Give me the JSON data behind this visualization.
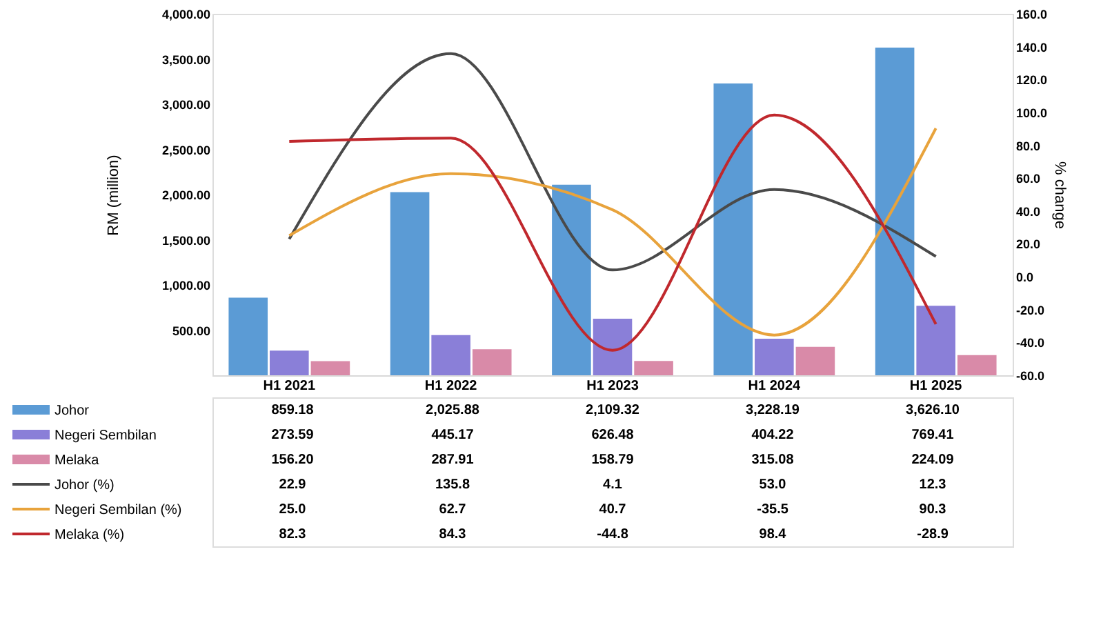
{
  "chart_data": {
    "type": "bar",
    "ylabel": "RM (million)",
    "y2label": "% change",
    "categories": [
      "H1 2021",
      "H1 2022",
      "H1 2023",
      "H1 2024",
      "H1 2025"
    ],
    "series": [
      {
        "name": "Johor",
        "color": "#5b9bd5",
        "values": [
          859.18,
          2025.88,
          2109.32,
          3228.19,
          3626.1
        ],
        "value_labels": [
          "859.18",
          "2,025.88",
          "2,109.32",
          "3,228.19",
          "3,626.10"
        ]
      },
      {
        "name": "Negeri Sembilan",
        "color": "#8a7fd8",
        "values": [
          273.59,
          445.17,
          626.48,
          404.22,
          769.41
        ],
        "value_labels": [
          "273.59",
          "445.17",
          "626.48",
          "404.22",
          "769.41"
        ]
      },
      {
        "name": "Melaka",
        "color": "#d98aa8",
        "values": [
          156.2,
          287.91,
          158.79,
          315.08,
          224.09
        ],
        "value_labels": [
          "156.20",
          "287.91",
          "158.79",
          "315.08",
          "224.09"
        ]
      },
      {
        "name": "Johor (%)",
        "type": "line",
        "axis": "y2",
        "color": "#4a4a4a",
        "values": [
          22.9,
          135.8,
          4.1,
          53.0,
          12.3
        ],
        "value_labels": [
          "22.9",
          "135.8",
          "4.1",
          "53.0",
          "12.3"
        ]
      },
      {
        "name": "Negeri Sembilan (%)",
        "type": "line",
        "axis": "y2",
        "color": "#e8a33c",
        "values": [
          25.0,
          62.7,
          40.7,
          -35.5,
          90.3
        ],
        "value_labels": [
          "25.0",
          "62.7",
          "40.7",
          "-35.5",
          "90.3"
        ]
      },
      {
        "name": "Melaka (%)",
        "type": "line",
        "axis": "y2",
        "color": "#c0282d",
        "values": [
          82.3,
          84.3,
          -44.8,
          98.4,
          -28.9
        ],
        "value_labels": [
          "82.3",
          "84.3",
          "-44.8",
          "98.4",
          "-28.9"
        ]
      }
    ],
    "ylim": [
      0,
      4000
    ],
    "yticks": [
      {
        "value": 500,
        "label": "500.00"
      },
      {
        "value": 1000,
        "label": "1,000.00"
      },
      {
        "value": 1500,
        "label": "1,500.00"
      },
      {
        "value": 2000,
        "label": "2,000.00"
      },
      {
        "value": 2500,
        "label": "2,500.00"
      },
      {
        "value": 3000,
        "label": "3,000.00"
      },
      {
        "value": 3500,
        "label": "3,500.00"
      },
      {
        "value": 4000,
        "label": "4,000.00"
      }
    ],
    "y2lim": [
      -60,
      160
    ],
    "y2ticks": [
      {
        "value": -60,
        "label": "-60.0"
      },
      {
        "value": -40,
        "label": "-40.0"
      },
      {
        "value": -20,
        "label": "-20.0"
      },
      {
        "value": 0,
        "label": "0.0"
      },
      {
        "value": 20,
        "label": "20.0"
      },
      {
        "value": 40,
        "label": "40.0"
      },
      {
        "value": 60,
        "label": "60.0"
      },
      {
        "value": 80,
        "label": "80.0"
      },
      {
        "value": 100,
        "label": "100.0"
      },
      {
        "value": 120,
        "label": "120.0"
      },
      {
        "value": 140,
        "label": "140.0"
      },
      {
        "value": 160,
        "label": "160.0"
      }
    ],
    "grid": false,
    "legend": "bottom",
    "line_style": "solid",
    "marker": "none"
  }
}
